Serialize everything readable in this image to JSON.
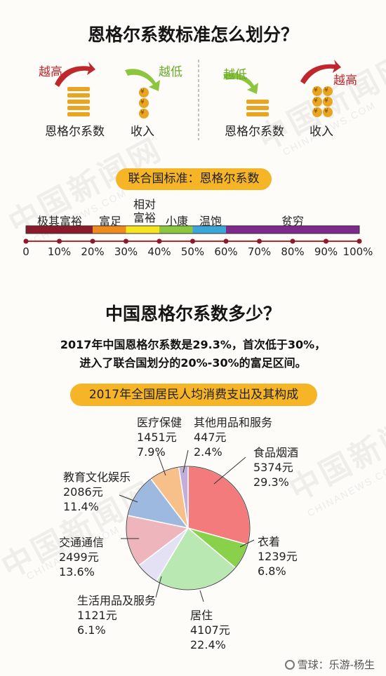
{
  "watermark": {
    "cn": "中国新闻网",
    "en": "CHINANEWS.COM"
  },
  "section1": {
    "title": "恩格尔系数标准怎么划分？",
    "left": {
      "gini_trend": "越高",
      "income_trend": "越低",
      "gini_label": "恩格尔系数",
      "income_label": "收入"
    },
    "right": {
      "gini_trend": "越低",
      "income_trend": "越高",
      "gini_label": "恩格尔系数",
      "income_label": "收入"
    },
    "coin_symbol": "¥",
    "colors": {
      "up_arrow": "#c0272d",
      "down_arrow": "#8cc63f",
      "coin": "#e9a521"
    }
  },
  "un_standard": {
    "label": "联合国标准：恩格尔系数",
    "categories": [
      {
        "name": "极其富裕",
        "color": "#8b1a2b",
        "text_color": "#b0293a"
      },
      {
        "name": "富足",
        "color": "#ef8a1d",
        "text_color": "#e0851a"
      },
      {
        "name": "相对\n富裕",
        "color": "#f7e520",
        "text_color": "#c9a314"
      },
      {
        "name": "小康",
        "color": "#8dc63f",
        "text_color": "#6aaa2a"
      },
      {
        "name": "温饱",
        "color": "#3ba7d9",
        "text_color": "#2a92c6"
      },
      {
        "name": "贫穷",
        "color": "#7e2a8c",
        "text_color": "#7e2a8c"
      }
    ],
    "ticks": [
      "0",
      "10%",
      "20%",
      "30%",
      "40%",
      "50%",
      "60%",
      "70%",
      "80%",
      "90%",
      "100%"
    ]
  },
  "section2": {
    "title": "中国恩格尔系数多少？",
    "line1": "2017年中国恩格尔系数是29.3%，首次低于30%，",
    "line2": "进入了联合国划分的20%-30%的富足区间。"
  },
  "chart_data": {
    "type": "pie",
    "title": "2017年全国居民人均消费支出及其构成",
    "slices": [
      {
        "name": "食品烟酒",
        "amount": "5374元",
        "share": "29.3%",
        "value": 29.3,
        "color": "#f47b7b"
      },
      {
        "name": "衣着",
        "amount": "1239元",
        "share": "6.8%",
        "value": 6.8,
        "color": "#8ad14b"
      },
      {
        "name": "居住",
        "amount": "4107元",
        "share": "22.4%",
        "value": 22.4,
        "color": "#b9e8b3"
      },
      {
        "name": "生活用品及服务",
        "amount": "1121元",
        "share": "6.1%",
        "value": 6.1,
        "color": "#e3e1f3"
      },
      {
        "name": "交通通信",
        "amount": "2499元",
        "share": "13.6%",
        "value": 13.6,
        "color": "#eeb6bc"
      },
      {
        "name": "教育文化娱乐",
        "amount": "2086元",
        "share": "11.4%",
        "value": 11.4,
        "color": "#9eb9e0"
      },
      {
        "name": "医疗保健",
        "amount": "1451元",
        "share": "7.9%",
        "value": 7.9,
        "color": "#f7c08b"
      },
      {
        "name": "其他用品和服务",
        "amount": "447元",
        "share": "2.4%",
        "value": 2.4,
        "color": "#c2aed9"
      }
    ]
  },
  "footer": {
    "brand": "雪球：乐游-杨生"
  }
}
